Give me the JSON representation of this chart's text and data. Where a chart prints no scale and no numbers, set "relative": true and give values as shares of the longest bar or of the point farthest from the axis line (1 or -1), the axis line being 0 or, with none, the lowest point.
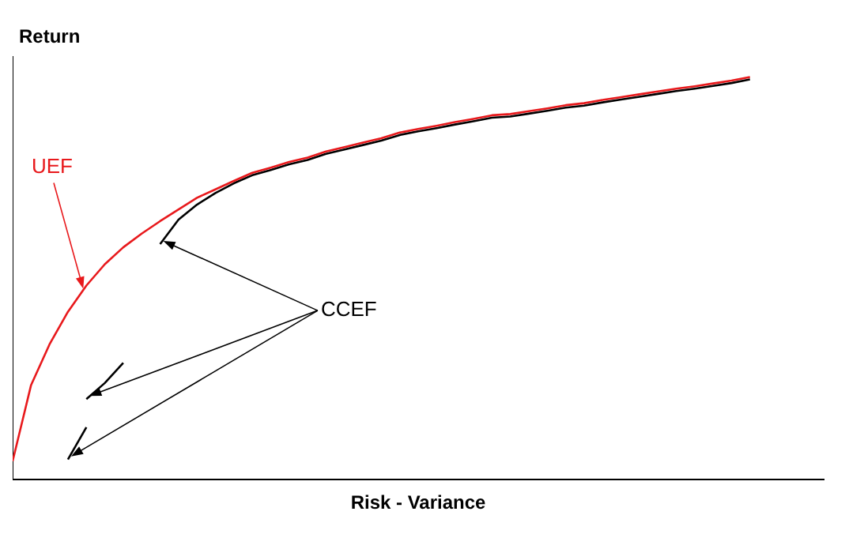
{
  "chart_data": {
    "type": "line",
    "relative": true,
    "xlabel": "Risk - Variance",
    "ylabel": "Return",
    "grid": false,
    "legend": false,
    "marker": "none",
    "line_style": "solid",
    "annotations": [
      "CCEF"
    ],
    "categories": [
      null,
      null,
      null,
      null,
      null,
      null,
      null,
      null,
      null,
      null,
      null,
      null,
      null,
      null,
      null,
      null,
      null,
      null,
      null,
      null,
      null,
      null,
      null,
      null,
      null,
      null,
      null,
      null,
      null,
      null,
      null,
      null,
      null,
      null,
      null,
      null,
      null,
      null,
      null,
      null,
      null,
      null,
      null,
      null,
      null
    ],
    "series": [
      {
        "name": "UEF",
        "color": "#e8191c",
        "values": [
          0.046,
          0.235,
          0.336,
          0.417,
          0.482,
          0.535,
          0.577,
          0.611,
          0.642,
          0.671,
          0.7,
          0.721,
          0.742,
          0.762,
          0.775,
          0.789,
          0.8,
          0.815,
          0.826,
          0.837,
          0.848,
          0.862,
          0.871,
          0.879,
          0.888,
          0.896,
          0.905,
          0.908,
          0.915,
          0.922,
          0.93,
          0.935,
          0.943,
          0.95,
          0.957,
          0.964,
          0.971,
          0.977,
          0.984,
          0.991,
          1,
          null,
          null,
          null,
          null
        ]
      },
      {
        "color": "#000000",
        "values": [
          null,
          null,
          null,
          null,
          null,
          null,
          null,
          null,
          0.585,
          0.646,
          0.683,
          0.712,
          0.736,
          0.756,
          0.769,
          0.783,
          0.794,
          0.809,
          0.82,
          0.831,
          0.842,
          0.856,
          0.865,
          0.873,
          0.882,
          0.89,
          0.899,
          0.902,
          0.909,
          0.916,
          0.924,
          0.929,
          0.937,
          0.944,
          0.951,
          0.958,
          0.965,
          0.971,
          0.978,
          0.985,
          0.994,
          null,
          null,
          null,
          null
        ]
      },
      {
        "color": "#000000",
        "values": [
          null,
          null,
          null,
          null,
          0.2,
          0.24,
          0.29,
          null,
          null,
          null,
          null,
          null,
          null,
          null,
          null,
          null,
          null,
          null,
          null,
          null,
          null,
          null,
          null,
          null,
          null,
          null,
          null,
          null,
          null,
          null,
          null,
          null,
          null,
          null,
          null,
          null,
          null,
          null,
          null,
          null,
          null,
          null,
          null,
          null,
          null
        ]
      },
      {
        "color": "#000000",
        "values": [
          null,
          null,
          null,
          0.05,
          0.13,
          null,
          null,
          null,
          null,
          null,
          null,
          null,
          null,
          null,
          null,
          null,
          null,
          null,
          null,
          null,
          null,
          null,
          null,
          null,
          null,
          null,
          null,
          null,
          null,
          null,
          null,
          null,
          null,
          null,
          null,
          null,
          null,
          null,
          null,
          null,
          null,
          null,
          null,
          null,
          null
        ]
      }
    ]
  }
}
